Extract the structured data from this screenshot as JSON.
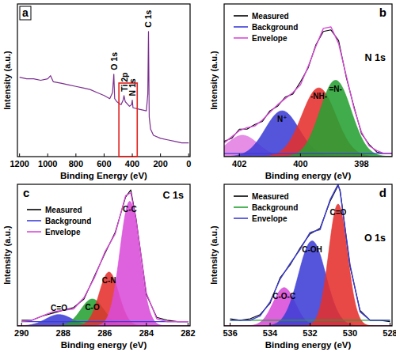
{
  "chart_data": [
    {
      "type": "line",
      "panel_label": "a",
      "x_label": "Binding Energy (eV)",
      "y_label": "Intensity (a.u.)",
      "xlim": [
        1215,
        -10
      ],
      "xticks": [
        1200,
        1000,
        800,
        600,
        400,
        200,
        0
      ],
      "ylim": [
        0,
        100
      ],
      "tick_labels": "x",
      "color": "#7b2e8f",
      "x": [
        1200,
        1150,
        1100,
        1050,
        1000,
        980,
        960,
        900,
        850,
        800,
        750,
        700,
        650,
        600,
        560,
        540,
        531,
        525,
        510,
        480,
        465,
        459,
        450,
        420,
        405,
        400,
        395,
        350,
        300,
        290,
        285,
        280,
        270,
        250,
        200,
        150,
        100,
        50,
        0
      ],
      "values": [
        52,
        51,
        51,
        50,
        51,
        53,
        49,
        48,
        47,
        46,
        45,
        44,
        42,
        40,
        38,
        42,
        54,
        38,
        36,
        34,
        37,
        40,
        36,
        33,
        34,
        37,
        32,
        31,
        30,
        41,
        82,
        26,
        18,
        14,
        12,
        11,
        10,
        9,
        9
      ],
      "annotations": [
        {
          "text": "O 1s",
          "x": 531
        },
        {
          "text": "Ti 2p",
          "x": 459
        },
        {
          "text": "N 1s",
          "x": 400
        },
        {
          "text": "C 1s",
          "x": 285
        }
      ],
      "highlight": [
        495,
        365
      ]
    },
    {
      "type": "line",
      "panel_label": "b",
      "title": "N 1s",
      "x_label": "Binding energy (eV)",
      "y_label": "Intensity (a.u.)",
      "xlim": [
        402.5,
        397
      ],
      "xticks": [
        402,
        400,
        398
      ],
      "ylim": [
        0,
        100
      ],
      "tick_labels": "x",
      "legend": "upper left",
      "x": [
        402.5,
        402.25,
        402,
        401.75,
        401.5,
        401.25,
        401,
        400.75,
        400.5,
        400.25,
        400,
        399.75,
        399.5,
        399.25,
        399,
        398.75,
        398.5,
        398.25,
        398,
        397.75,
        397.5,
        397.25,
        397
      ],
      "series": [
        {
          "name": "Measured",
          "color": "#000000",
          "values": [
            10,
            12,
            18,
            18,
            21,
            23,
            30,
            33,
            39,
            41,
            49,
            58,
            73,
            82,
            83,
            76,
            52,
            33,
            15,
            8,
            3,
            2,
            2
          ]
        },
        {
          "name": "Background",
          "color": "#3d3dd6",
          "values": [
            2,
            2,
            2,
            2,
            2,
            2,
            2,
            2,
            2,
            2,
            2,
            2,
            2,
            2,
            2,
            2,
            2,
            2,
            2,
            2,
            2,
            2,
            2
          ]
        },
        {
          "name": "Envelope",
          "color": "#d94bd9",
          "values": [
            9,
            13,
            17,
            19,
            20,
            24,
            29,
            34,
            38,
            42,
            47,
            59,
            72,
            84,
            85,
            74,
            53,
            32,
            16,
            7,
            4,
            2,
            2
          ]
        }
      ],
      "peaks": [
        {
          "name": null,
          "center": 401.9,
          "height": 14,
          "fwhm": 1.2,
          "color": "#e27de2"
        },
        {
          "name": "N⁺",
          "center": 400.6,
          "height": 30,
          "fwhm": 1.3,
          "color": "#3d3dd6"
        },
        {
          "name": "-NH-",
          "center": 399.4,
          "height": 45,
          "fwhm": 1.3,
          "color": "#e5302c"
        },
        {
          "name": "=N-",
          "center": 398.85,
          "height": 50,
          "fwhm": 1.2,
          "color": "#25a032"
        }
      ]
    },
    {
      "type": "line",
      "panel_label": "c",
      "title": "C 1s",
      "x_label": "Binding energy (eV)",
      "y_label": "Intensity (a.u.)",
      "xlim": [
        290.2,
        281.9
      ],
      "xticks": [
        290,
        288,
        286,
        284,
        282
      ],
      "ylim": [
        0,
        100
      ],
      "tick_labels": "x",
      "legend": "upper left",
      "x": [
        290,
        289.5,
        289,
        288.5,
        288,
        287.5,
        287,
        286.5,
        286,
        285.5,
        285,
        284.75,
        284.5,
        284,
        283.5,
        283,
        282.5,
        282
      ],
      "series": [
        {
          "name": "Measured",
          "color": "#000000",
          "values": [
            4,
            4,
            7,
            9,
            11,
            13,
            19,
            35,
            51,
            66,
            91,
            96,
            76,
            22,
            6,
            4,
            3,
            3
          ]
        },
        {
          "name": "Background",
          "color": "#3d3dd6",
          "values": [
            3,
            3,
            3,
            3,
            3,
            3,
            3,
            3,
            3,
            3,
            3,
            3,
            3,
            3,
            3,
            3,
            3,
            3
          ]
        },
        {
          "name": "Envelope",
          "color": "#d94bd9",
          "values": [
            3,
            4,
            7,
            10,
            11,
            12,
            20,
            34,
            52,
            65,
            92,
            94,
            75,
            23,
            5,
            3,
            3,
            3
          ]
        }
      ],
      "peaks": [
        {
          "name": "C=O",
          "center": 288.2,
          "height": 8,
          "fwhm": 1.5,
          "color": "#3d3dd6"
        },
        {
          "name": "C-O",
          "center": 286.6,
          "height": 19,
          "fwhm": 1.3,
          "color": "#25a032"
        },
        {
          "name": "C-N",
          "center": 285.8,
          "height": 38,
          "fwhm": 1.1,
          "color": "#e5302c"
        },
        {
          "name": "C-C",
          "center": 284.8,
          "height": 88,
          "fwhm": 1.1,
          "color": "#d94bd9"
        }
      ]
    },
    {
      "type": "line",
      "panel_label": "d",
      "title": "O 1s",
      "x_label": "Binding energy (eV)",
      "y_label": "Intensity (a.u.)",
      "xlim": [
        536.3,
        527.9
      ],
      "xticks": [
        536,
        534,
        532,
        530,
        528
      ],
      "ylim": [
        0,
        100
      ],
      "tick_labels": "x",
      "legend": "upper left",
      "x": [
        536,
        535.5,
        535,
        534.5,
        534,
        533.5,
        533,
        532.5,
        532,
        531.5,
        531,
        530.6,
        530.5,
        530,
        529.5,
        529,
        528.5,
        528
      ],
      "series": [
        {
          "name": "Measured",
          "color": "#000000",
          "values": [
            5,
            4,
            5,
            8,
            16,
            34,
            43,
            55,
            65,
            69,
            88,
            99,
            96,
            42,
            11,
            4,
            4,
            3
          ]
        },
        {
          "name": "Background",
          "color": "#25a032",
          "values": [
            4,
            4,
            4,
            4,
            4,
            4,
            4,
            4,
            4,
            4,
            4,
            4,
            4,
            4,
            4,
            4,
            4,
            4
          ]
        },
        {
          "name": "Envelope",
          "color": "#3d3dd6",
          "values": [
            4,
            4,
            4,
            7,
            17,
            33,
            44,
            54,
            66,
            68,
            89,
            100,
            95,
            43,
            10,
            4,
            4,
            4
          ]
        }
      ],
      "peaks": [
        {
          "name": "C-O-C",
          "center": 533.3,
          "height": 27,
          "fwhm": 1.3,
          "color": "#d94bd9"
        },
        {
          "name": "C-OH",
          "center": 531.9,
          "height": 60,
          "fwhm": 1.6,
          "color": "#3d3dd6"
        },
        {
          "name": "C=O",
          "center": 530.6,
          "height": 86,
          "fwhm": 1.1,
          "color": "#e5302c"
        }
      ]
    }
  ]
}
